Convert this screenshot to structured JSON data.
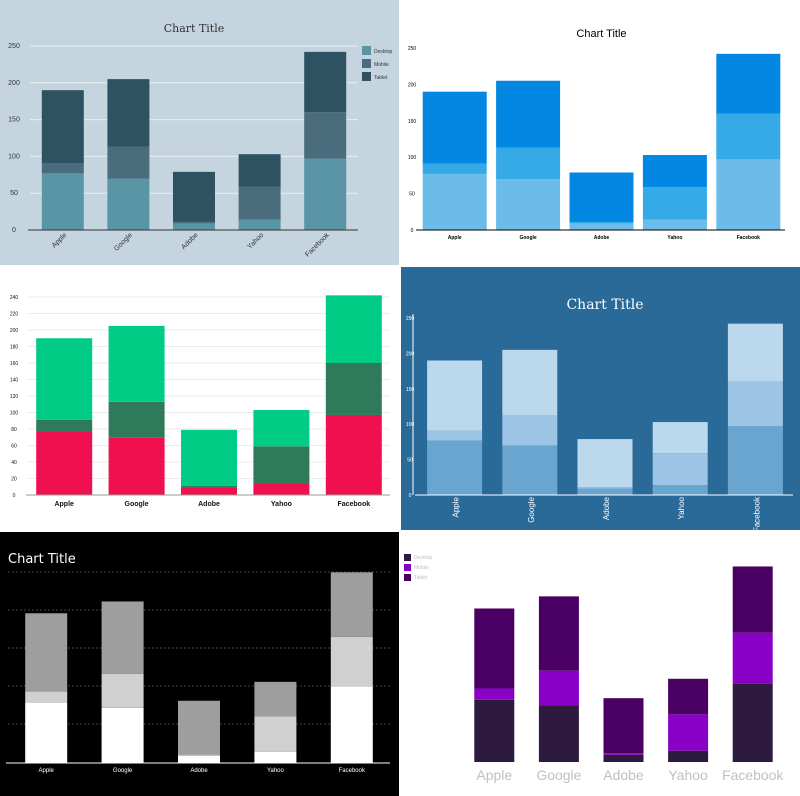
{
  "chart_data": [
    {
      "type": "bar",
      "stacked": true,
      "title": "Chart Title",
      "categories": [
        "Apple",
        "Google",
        "Adobe",
        "Yahoo",
        "Facebook"
      ],
      "series": [
        {
          "name": "Desktop",
          "values": [
            77,
            70,
            9,
            14,
            97
          ]
        },
        {
          "name": "Mobile",
          "values": [
            14,
            43,
            2,
            45,
            63
          ]
        },
        {
          "name": "Tablet",
          "values": [
            99,
            92,
            68,
            44,
            82
          ]
        }
      ],
      "ylim": [
        0,
        250
      ],
      "yticks": [
        "0",
        "50",
        "100",
        "150",
        "200",
        "250"
      ],
      "legend": "right",
      "grid": true,
      "colors": {
        "background": "#c5d5e0",
        "Desktop": "#5a95a6",
        "Mobile": "#4a6c7c",
        "Tablet": "#2f5263",
        "text": "#333333"
      }
    },
    {
      "type": "bar",
      "stacked": true,
      "title": "Chart Title",
      "categories": [
        "Apple",
        "Google",
        "Adobe",
        "Yahoo",
        "Facebook"
      ],
      "series": [
        {
          "values": [
            77,
            70,
            9,
            14,
            97
          ]
        },
        {
          "values": [
            14,
            43,
            2,
            45,
            63
          ]
        },
        {
          "values": [
            99,
            92,
            68,
            44,
            82
          ]
        }
      ],
      "ylim": [
        0,
        250
      ],
      "yticks": [
        "0",
        "50",
        "100",
        "150",
        "200",
        "250"
      ],
      "grid": false,
      "colors": {
        "background": "#ffffff",
        "s0": "#6bbce8",
        "s1": "#35aae6",
        "s2": "#0288e2",
        "text": "#000000"
      }
    },
    {
      "type": "bar",
      "stacked": true,
      "title": "",
      "categories": [
        "Apple",
        "Google",
        "Adobe",
        "Yahoo",
        "Facebook"
      ],
      "series": [
        {
          "values": [
            77,
            70,
            9,
            14,
            97
          ]
        },
        {
          "values": [
            14,
            43,
            2,
            45,
            63
          ]
        },
        {
          "values": [
            99,
            92,
            68,
            44,
            82
          ]
        }
      ],
      "ylim": [
        0,
        240
      ],
      "yticks": [
        "0",
        "20",
        "40",
        "60",
        "80",
        "100",
        "120",
        "140",
        "160",
        "180",
        "200",
        "220",
        "240"
      ],
      "grid": true,
      "colors": {
        "background": "#ffffff",
        "s0": "#f0104f",
        "s1": "#2f7a5a",
        "s2": "#00cc85",
        "text": "#111111"
      }
    },
    {
      "type": "bar",
      "stacked": true,
      "title": "Chart Title",
      "categories": [
        "Apple",
        "Google",
        "Adobe",
        "Yahoo",
        "Facebook"
      ],
      "series": [
        {
          "values": [
            77,
            70,
            9,
            14,
            97
          ]
        },
        {
          "values": [
            14,
            43,
            2,
            45,
            63
          ]
        },
        {
          "values": [
            99,
            92,
            68,
            44,
            82
          ]
        }
      ],
      "ylim": [
        0,
        250
      ],
      "yticks": [
        "0",
        "50",
        "100",
        "150",
        "200",
        "250"
      ],
      "grid": false,
      "colors": {
        "background": "#2a6a98",
        "s0": "#6aa5d0",
        "s1": "#9cc4e4",
        "s2": "#bcd8ec",
        "text": "#ffffff"
      }
    },
    {
      "type": "bar",
      "stacked": true,
      "title": "Chart Title",
      "categories": [
        "Apple",
        "Google",
        "Adobe",
        "Yahoo",
        "Facebook"
      ],
      "series": [
        {
          "values": [
            77,
            70,
            9,
            14,
            97
          ]
        },
        {
          "values": [
            14,
            43,
            2,
            45,
            63
          ]
        },
        {
          "values": [
            99,
            92,
            68,
            44,
            82
          ]
        }
      ],
      "ylim": [
        0,
        250
      ],
      "grid": true,
      "colors": {
        "background": "#000000",
        "s0": "#ffffff",
        "s1": "#d0d0d0",
        "s2": "#9e9e9e",
        "text": "#ffffff"
      }
    },
    {
      "type": "bar",
      "stacked": true,
      "title": "",
      "categories": [
        "Apple",
        "Google",
        "Adobe",
        "Yahoo",
        "Facebook"
      ],
      "series": [
        {
          "name": "Desktop",
          "values": [
            77,
            70,
            9,
            14,
            97
          ]
        },
        {
          "name": "Mobile",
          "values": [
            14,
            43,
            2,
            45,
            63
          ]
        },
        {
          "name": "Tablet",
          "values": [
            99,
            92,
            68,
            44,
            82
          ]
        }
      ],
      "ylim": [
        0,
        250
      ],
      "legend": "top-left",
      "grid": false,
      "colors": {
        "background": "#ffffff",
        "Desktop": "#2e1a3e",
        "Mobile": "#8a00c6",
        "Tablet": "#4a0062",
        "text": "#c0c0c0"
      }
    }
  ]
}
